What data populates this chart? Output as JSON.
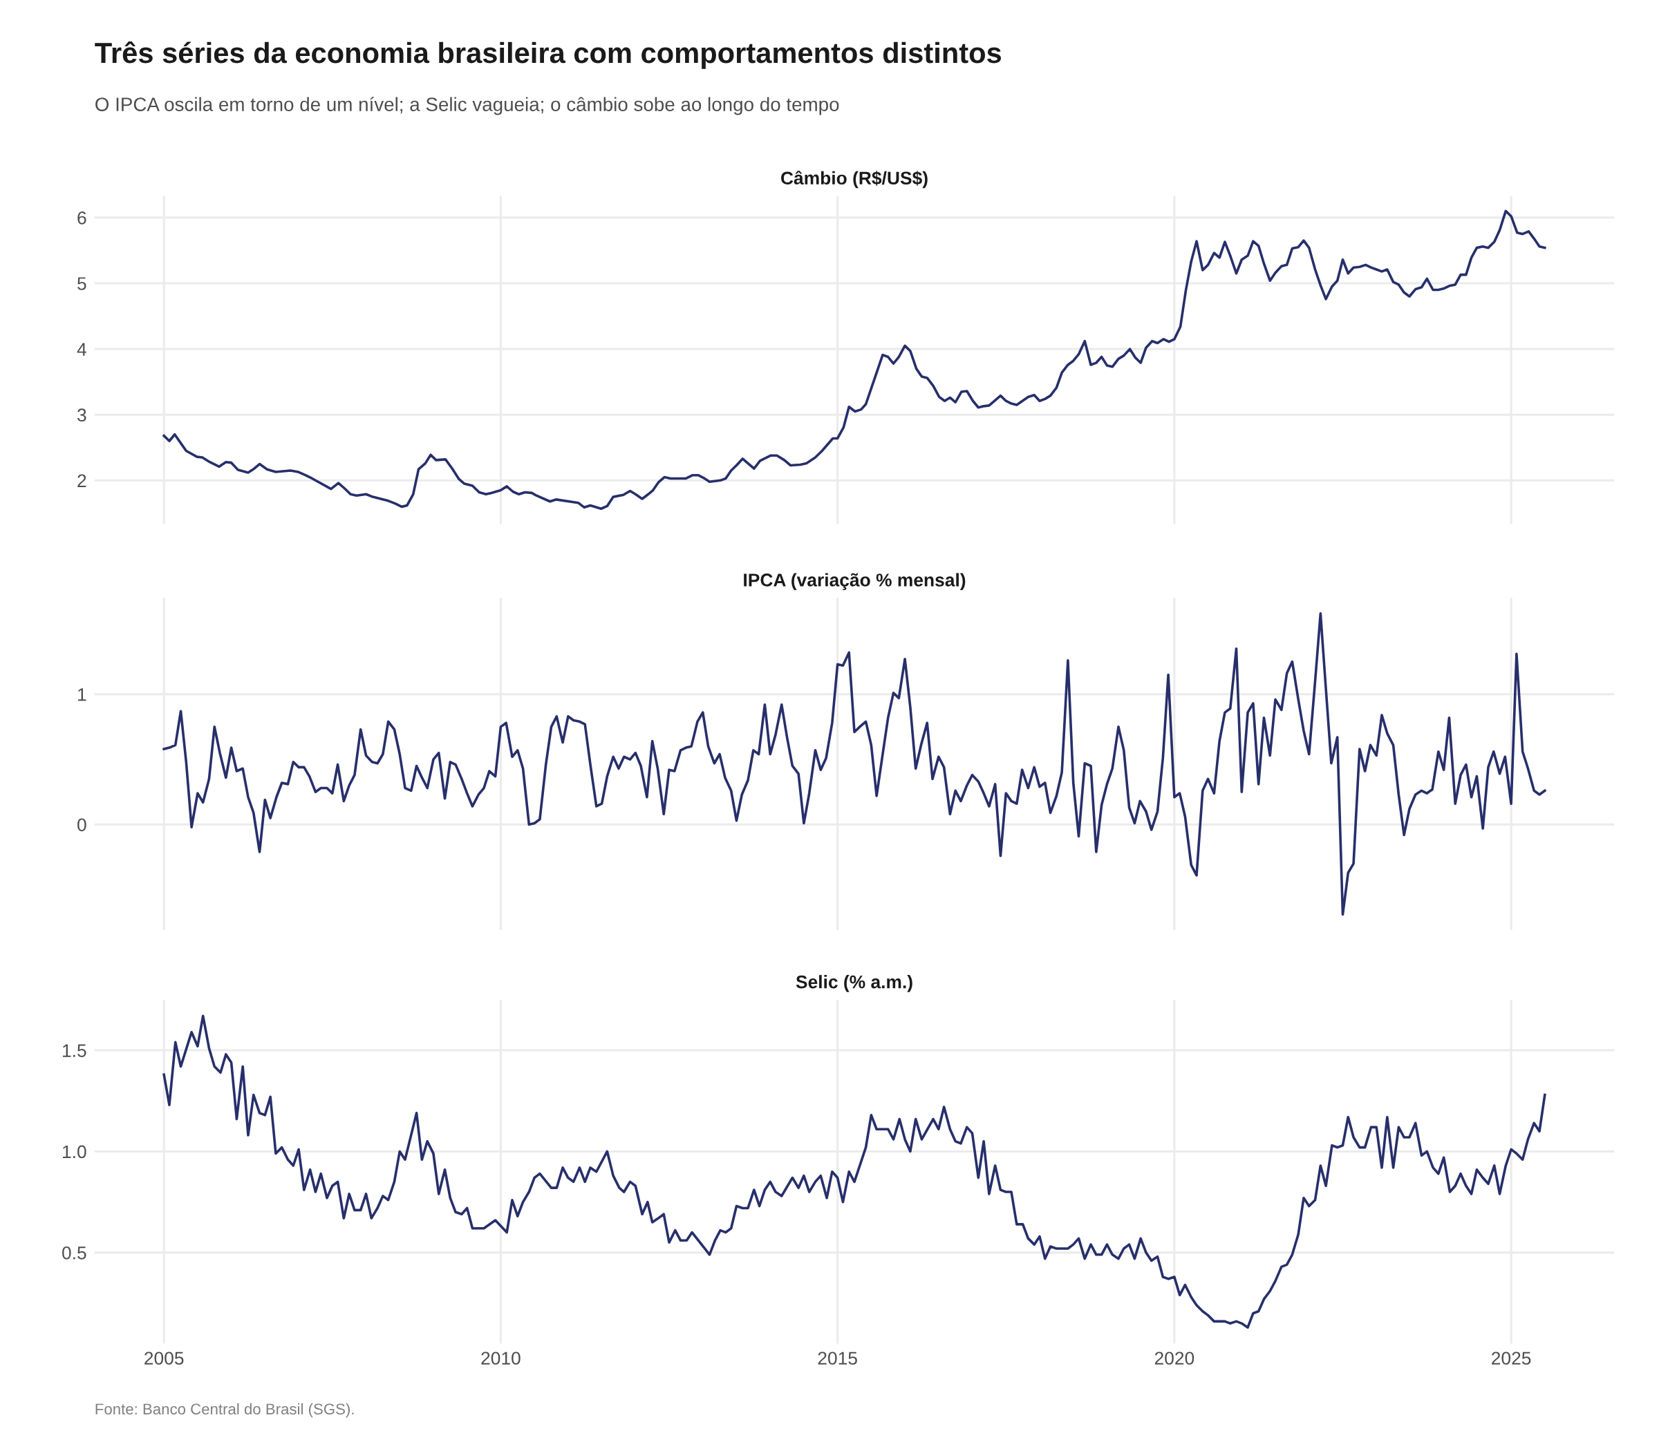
{
  "chart_data": [
    {
      "type": "line",
      "title": "Três séries da economia brasileira com comportamentos distintos",
      "subtitle": "O IPCA oscila em torno de um nível; a Selic vagueia; o câmbio sobe ao longo do tempo",
      "x": [
        2005.0,
        2005.08,
        2005.16,
        2005.33,
        2005.49,
        2005.57,
        2005.68,
        2005.82,
        2005.92,
        2006.0,
        2006.1,
        2006.25,
        2006.34,
        2006.42,
        2006.53,
        2006.66,
        2006.88,
        2006.99,
        2007.1,
        2007.2,
        2007.48,
        2007.59,
        2007.68,
        2007.77,
        2007.86,
        2008.0,
        2008.1,
        2008.33,
        2008.43,
        2008.53,
        2008.61,
        2008.7,
        2008.78,
        2008.88,
        2008.96,
        2009.04,
        2009.18,
        2009.28,
        2009.38,
        2009.46,
        2009.58,
        2009.68,
        2009.78,
        2009.86,
        2010.0,
        2010.09,
        2010.18,
        2010.27,
        2010.36,
        2010.46,
        2010.53,
        2010.73,
        2010.82,
        2011.15,
        2011.24,
        2011.33,
        2011.49,
        2011.58,
        2011.67,
        2011.82,
        2011.92,
        2012.0,
        2012.1,
        2012.19,
        2012.26,
        2012.34,
        2012.43,
        2012.52,
        2012.75,
        2012.85,
        2012.93,
        2013.01,
        2013.1,
        2013.26,
        2013.34,
        2013.42,
        2013.5,
        2013.59,
        2013.76,
        2013.85,
        2014.01,
        2014.1,
        2014.21,
        2014.3,
        2014.45,
        2014.54,
        2014.67,
        2014.77,
        2014.93,
        2015.0,
        2015.09,
        2015.17,
        2015.26,
        2015.35,
        2015.42,
        2015.51,
        2015.67,
        2015.75,
        2015.83,
        2015.91,
        2016.0,
        2016.08,
        2016.17,
        2016.25,
        2016.33,
        2016.42,
        2016.51,
        2016.59,
        2016.67,
        2016.75,
        2016.84,
        2016.92,
        2017.01,
        2017.09,
        2017.17,
        2017.25,
        2017.34,
        2017.42,
        2017.5,
        2017.58,
        2017.66,
        2017.83,
        2017.92,
        2018.0,
        2018.08,
        2018.16,
        2018.25,
        2018.33,
        2018.42,
        2018.5,
        2018.58,
        2018.67,
        2018.76,
        2018.84,
        2018.92,
        2019.0,
        2019.08,
        2019.17,
        2019.25,
        2019.34,
        2019.42,
        2019.5,
        2019.58,
        2019.67,
        2019.75,
        2019.84,
        2019.92,
        2020.0,
        2020.09,
        2020.17,
        2020.25,
        2020.33,
        2020.42,
        2020.5,
        2020.59,
        2020.67,
        2020.75,
        2020.83,
        2020.92,
        2021.0,
        2021.09,
        2021.17,
        2021.25,
        2021.33,
        2021.42,
        2021.5,
        2021.59,
        2021.67,
        2021.75,
        2021.84,
        2021.92,
        2022.0,
        2022.09,
        2022.17,
        2022.25,
        2022.34,
        2022.42,
        2022.5,
        2022.58,
        2022.66,
        2022.75,
        2022.84,
        2022.92,
        2023.0,
        2023.08,
        2023.16,
        2023.25,
        2023.33,
        2023.41,
        2023.49,
        2023.58,
        2023.67,
        2023.75,
        2023.84,
        2023.92,
        2024.0,
        2024.08,
        2024.17,
        2024.25,
        2024.33,
        2024.41,
        2024.49,
        2024.58,
        2024.66,
        2024.75,
        2024.83,
        2024.92,
        2025.0,
        2025.09,
        2025.17,
        2025.26,
        2025.34,
        2025.42,
        2025.5
      ],
      "series": [
        {
          "name": "Câmbio (R$/US$)",
          "color": "#272f6b",
          "values": [
            2.68,
            2.6,
            2.7,
            2.45,
            2.36,
            2.35,
            2.28,
            2.21,
            2.28,
            2.27,
            2.16,
            2.12,
            2.18,
            2.25,
            2.17,
            2.13,
            2.15,
            2.13,
            2.08,
            2.03,
            1.87,
            1.96,
            1.88,
            1.79,
            1.77,
            1.79,
            1.75,
            1.69,
            1.65,
            1.6,
            1.62,
            1.79,
            2.17,
            2.26,
            2.39,
            2.31,
            2.32,
            2.18,
            2.02,
            1.95,
            1.92,
            1.82,
            1.79,
            1.81,
            1.85,
            1.91,
            1.83,
            1.79,
            1.82,
            1.81,
            1.77,
            1.68,
            1.71,
            1.66,
            1.59,
            1.62,
            1.57,
            1.61,
            1.75,
            1.78,
            1.84,
            1.79,
            1.72,
            1.79,
            1.85,
            1.97,
            2.05,
            2.03,
            2.03,
            2.08,
            2.08,
            2.04,
            1.98,
            2.0,
            2.03,
            2.15,
            2.23,
            2.33,
            2.18,
            2.3,
            2.38,
            2.38,
            2.31,
            2.23,
            2.24,
            2.26,
            2.35,
            2.45,
            2.64,
            2.64,
            2.81,
            3.12,
            3.05,
            3.08,
            3.16,
            3.43,
            3.91,
            3.88,
            3.78,
            3.88,
            4.05,
            3.97,
            3.7,
            3.58,
            3.56,
            3.44,
            3.27,
            3.21,
            3.26,
            3.19,
            3.35,
            3.36,
            3.21,
            3.11,
            3.13,
            3.14,
            3.22,
            3.29,
            3.21,
            3.17,
            3.15,
            3.27,
            3.3,
            3.21,
            3.24,
            3.29,
            3.41,
            3.64,
            3.76,
            3.82,
            3.92,
            4.12,
            3.76,
            3.79,
            3.88,
            3.75,
            3.73,
            3.85,
            3.9,
            4.0,
            3.87,
            3.79,
            4.02,
            4.12,
            4.09,
            4.15,
            4.11,
            4.15,
            4.34,
            4.89,
            5.33,
            5.64,
            5.2,
            5.28,
            5.46,
            5.39,
            5.63,
            5.42,
            5.15,
            5.36,
            5.42,
            5.64,
            5.57,
            5.3,
            5.04,
            5.16,
            5.26,
            5.28,
            5.53,
            5.55,
            5.65,
            5.54,
            5.21,
            4.97,
            4.76,
            4.95,
            5.04,
            5.36,
            5.15,
            5.24,
            5.25,
            5.28,
            5.24,
            5.21,
            5.18,
            5.21,
            5.02,
            4.98,
            4.86,
            4.8,
            4.91,
            4.94,
            5.07,
            4.9,
            4.9,
            4.92,
            4.96,
            4.98,
            5.13,
            5.13,
            5.39,
            5.54,
            5.56,
            5.54,
            5.63,
            5.81,
            6.1,
            6.02,
            5.77,
            5.75,
            5.79,
            5.68,
            5.56,
            5.54
          ]
        }
      ],
      "xlim": [
        2003.97,
        2026.53
      ],
      "xticks": [
        2005,
        2010,
        2015,
        2020,
        2025
      ],
      "ylim": [
        1.34,
        6.33
      ],
      "yticks": [
        2,
        3,
        4,
        5,
        6
      ],
      "grid": true,
      "tick_labels": "y"
    },
    {
      "type": "line",
      "x": [
        2005.0,
        2005.08,
        2005.17,
        2005.25,
        2005.33,
        2005.41,
        2005.5,
        2005.58,
        2005.67,
        2005.75,
        2005.83,
        2005.92,
        2006.0,
        2006.08,
        2006.17,
        2006.25,
        2006.33,
        2006.42,
        2006.5,
        2006.58,
        2006.67,
        2006.75,
        2006.84,
        2006.92,
        2007.0,
        2007.08,
        2007.16,
        2007.25,
        2007.33,
        2007.42,
        2007.5,
        2007.58,
        2007.67,
        2007.75,
        2007.83,
        2007.92,
        2008.0,
        2008.09,
        2008.17,
        2008.25,
        2008.33,
        2008.42,
        2008.5,
        2008.58,
        2008.67,
        2008.75,
        2008.83,
        2008.91,
        2009.0,
        2009.08,
        2009.17,
        2009.25,
        2009.33,
        2009.42,
        2009.5,
        2009.58,
        2009.67,
        2009.75,
        2009.83,
        2009.92,
        2010.0,
        2010.08,
        2010.17,
        2010.25,
        2010.33,
        2010.42,
        2010.5,
        2010.58,
        2010.67,
        2010.75,
        2010.83,
        2010.92,
        2011.0,
        2011.08,
        2011.17,
        2011.25,
        2011.33,
        2011.42,
        2011.5,
        2011.58,
        2011.67,
        2011.75,
        2011.83,
        2011.92,
        2012.0,
        2012.08,
        2012.17,
        2012.25,
        2012.33,
        2012.42,
        2012.5,
        2012.58,
        2012.67,
        2012.75,
        2012.83,
        2012.92,
        2013.0,
        2013.08,
        2013.17,
        2013.25,
        2013.33,
        2013.42,
        2013.5,
        2013.58,
        2013.67,
        2013.75,
        2013.83,
        2013.92,
        2014.0,
        2014.08,
        2014.17,
        2014.25,
        2014.33,
        2014.42,
        2014.5,
        2014.58,
        2014.67,
        2014.75,
        2014.83,
        2014.92,
        2015.0,
        2015.08,
        2015.17,
        2015.25,
        2015.33,
        2015.42,
        2015.5,
        2015.58,
        2015.67,
        2015.75,
        2015.83,
        2015.91,
        2016.0,
        2016.08,
        2016.16,
        2016.24,
        2016.33,
        2016.41,
        2016.5,
        2016.58,
        2016.67,
        2016.75,
        2016.83,
        2016.92,
        2017.0,
        2017.09,
        2017.17,
        2017.25,
        2017.34,
        2017.42,
        2017.5,
        2017.58,
        2017.66,
        2017.74,
        2017.83,
        2017.92,
        2018.0,
        2018.08,
        2018.16,
        2018.25,
        2018.33,
        2018.42,
        2018.5,
        2018.58,
        2018.67,
        2018.76,
        2018.84,
        2018.92,
        2019.0,
        2019.08,
        2019.17,
        2019.25,
        2019.33,
        2019.41,
        2019.49,
        2019.58,
        2019.66,
        2019.75,
        2019.83,
        2019.91,
        2020.0,
        2020.08,
        2020.16,
        2020.25,
        2020.33,
        2020.42,
        2020.5,
        2020.59,
        2020.67,
        2020.75,
        2020.83,
        2020.92,
        2021.0,
        2021.09,
        2021.17,
        2021.25,
        2021.33,
        2021.42,
        2021.5,
        2021.59,
        2021.67,
        2021.75,
        2021.84,
        2021.92,
        2022.0,
        2022.09,
        2022.17,
        2022.25,
        2022.33,
        2022.42,
        2022.5,
        2022.58,
        2022.66,
        2022.75,
        2022.83,
        2022.91,
        2023.0,
        2023.08,
        2023.16,
        2023.25,
        2023.33,
        2023.41,
        2023.49,
        2023.58,
        2023.67,
        2023.75,
        2023.83,
        2023.92,
        2024.0,
        2024.08,
        2024.17,
        2024.25,
        2024.33,
        2024.41,
        2024.49,
        2024.58,
        2024.66,
        2024.74,
        2024.83,
        2024.91,
        2025.0,
        2025.08,
        2025.17,
        2025.25,
        2025.34,
        2025.42,
        2025.5
      ],
      "series": [
        {
          "name": "IPCA (variação % mensal)",
          "color": "#272f6b",
          "values": [
            0.58,
            0.59,
            0.61,
            0.87,
            0.48,
            -0.02,
            0.24,
            0.17,
            0.35,
            0.75,
            0.55,
            0.36,
            0.59,
            0.41,
            0.43,
            0.21,
            0.09,
            -0.21,
            0.19,
            0.05,
            0.21,
            0.32,
            0.31,
            0.48,
            0.44,
            0.44,
            0.37,
            0.25,
            0.28,
            0.28,
            0.24,
            0.46,
            0.18,
            0.3,
            0.38,
            0.73,
            0.53,
            0.48,
            0.47,
            0.54,
            0.79,
            0.73,
            0.54,
            0.28,
            0.26,
            0.45,
            0.36,
            0.28,
            0.5,
            0.55,
            0.2,
            0.48,
            0.46,
            0.35,
            0.24,
            0.14,
            0.23,
            0.28,
            0.41,
            0.37,
            0.75,
            0.78,
            0.52,
            0.57,
            0.43,
            0.0,
            0.01,
            0.04,
            0.46,
            0.75,
            0.83,
            0.63,
            0.83,
            0.8,
            0.79,
            0.77,
            0.46,
            0.14,
            0.16,
            0.37,
            0.52,
            0.43,
            0.52,
            0.5,
            0.55,
            0.45,
            0.21,
            0.64,
            0.43,
            0.08,
            0.42,
            0.41,
            0.57,
            0.59,
            0.6,
            0.79,
            0.86,
            0.6,
            0.47,
            0.54,
            0.36,
            0.26,
            0.03,
            0.23,
            0.34,
            0.57,
            0.54,
            0.92,
            0.54,
            0.69,
            0.92,
            0.67,
            0.45,
            0.39,
            0.01,
            0.24,
            0.57,
            0.42,
            0.51,
            0.78,
            1.23,
            1.22,
            1.32,
            0.71,
            0.75,
            0.79,
            0.61,
            0.22,
            0.54,
            0.82,
            1.01,
            0.97,
            1.27,
            0.9,
            0.43,
            0.61,
            0.78,
            0.35,
            0.52,
            0.44,
            0.08,
            0.26,
            0.18,
            0.3,
            0.38,
            0.33,
            0.24,
            0.14,
            0.31,
            -0.24,
            0.24,
            0.18,
            0.16,
            0.42,
            0.28,
            0.44,
            0.29,
            0.32,
            0.09,
            0.22,
            0.4,
            1.26,
            0.32,
            -0.09,
            0.47,
            0.45,
            -0.21,
            0.15,
            0.31,
            0.43,
            0.75,
            0.57,
            0.13,
            0.01,
            0.18,
            0.1,
            -0.04,
            0.1,
            0.51,
            1.15,
            0.21,
            0.24,
            0.06,
            -0.31,
            -0.39,
            0.26,
            0.35,
            0.24,
            0.64,
            0.86,
            0.89,
            1.35,
            0.25,
            0.86,
            0.93,
            0.31,
            0.82,
            0.53,
            0.96,
            0.88,
            1.16,
            1.25,
            0.96,
            0.72,
            0.54,
            1.1,
            1.62,
            1.04,
            0.47,
            0.67,
            -0.69,
            -0.37,
            -0.3,
            0.58,
            0.41,
            0.61,
            0.53,
            0.84,
            0.7,
            0.61,
            0.23,
            -0.08,
            0.12,
            0.23,
            0.26,
            0.24,
            0.27,
            0.56,
            0.42,
            0.82,
            0.16,
            0.38,
            0.46,
            0.21,
            0.37,
            -0.03,
            0.44,
            0.56,
            0.39,
            0.52,
            0.16,
            1.31,
            0.56,
            0.43,
            0.26,
            0.23,
            0.26
          ]
        }
      ],
      "xlim": [
        2003.97,
        2026.53
      ],
      "xticks": [
        2005,
        2010,
        2015,
        2020,
        2025
      ],
      "ylim": [
        -0.81,
        1.74
      ],
      "yticks": [
        0,
        1
      ],
      "grid": true,
      "tick_labels": "y"
    },
    {
      "type": "line",
      "annotations": [
        "Fonte: Banco Central do Brasil (SGS)."
      ],
      "x": [
        2005.0,
        2005.08,
        2005.17,
        2005.25,
        2005.41,
        2005.5,
        2005.58,
        2005.67,
        2005.75,
        2005.84,
        2005.92,
        2006.0,
        2006.08,
        2006.17,
        2006.25,
        2006.33,
        2006.42,
        2006.5,
        2006.58,
        2006.66,
        2006.75,
        2006.84,
        2006.92,
        2007.0,
        2007.08,
        2007.17,
        2007.25,
        2007.33,
        2007.42,
        2007.5,
        2007.58,
        2007.67,
        2007.75,
        2007.83,
        2007.92,
        2008.0,
        2008.08,
        2008.17,
        2008.25,
        2008.33,
        2008.42,
        2008.5,
        2008.58,
        2008.75,
        2008.83,
        2008.91,
        2009.0,
        2009.08,
        2009.17,
        2009.25,
        2009.33,
        2009.42,
        2009.5,
        2009.58,
        2009.75,
        2009.92,
        2010.09,
        2010.17,
        2010.25,
        2010.33,
        2010.42,
        2010.5,
        2010.58,
        2010.75,
        2010.83,
        2010.92,
        2011.0,
        2011.08,
        2011.17,
        2011.25,
        2011.33,
        2011.42,
        2011.58,
        2011.67,
        2011.76,
        2011.83,
        2011.92,
        2012.0,
        2012.1,
        2012.18,
        2012.25,
        2012.34,
        2012.42,
        2012.5,
        2012.59,
        2012.67,
        2012.76,
        2012.84,
        2013.1,
        2013.18,
        2013.26,
        2013.34,
        2013.42,
        2013.5,
        2013.59,
        2013.67,
        2013.76,
        2013.84,
        2013.92,
        2014.0,
        2014.08,
        2014.17,
        2014.33,
        2014.42,
        2014.5,
        2014.58,
        2014.67,
        2014.75,
        2014.84,
        2014.92,
        2015.0,
        2015.08,
        2015.17,
        2015.25,
        2015.33,
        2015.42,
        2015.5,
        2015.58,
        2015.75,
        2015.83,
        2015.92,
        2016.0,
        2016.08,
        2016.16,
        2016.25,
        2016.42,
        2016.5,
        2016.58,
        2016.67,
        2016.75,
        2016.83,
        2016.92,
        2017.0,
        2017.09,
        2017.17,
        2017.25,
        2017.34,
        2017.42,
        2017.5,
        2017.58,
        2017.66,
        2017.75,
        2017.83,
        2017.92,
        2018.0,
        2018.08,
        2018.16,
        2018.25,
        2018.42,
        2018.5,
        2018.58,
        2018.67,
        2018.76,
        2018.84,
        2018.92,
        2019.0,
        2019.08,
        2019.17,
        2019.25,
        2019.33,
        2019.41,
        2019.5,
        2019.58,
        2019.66,
        2019.75,
        2019.83,
        2019.91,
        2020.0,
        2020.08,
        2020.16,
        2020.25,
        2020.33,
        2020.42,
        2020.5,
        2020.59,
        2020.75,
        2020.83,
        2020.92,
        2021.0,
        2021.09,
        2021.17,
        2021.25,
        2021.33,
        2021.42,
        2021.5,
        2021.59,
        2021.67,
        2021.75,
        2021.84,
        2021.92,
        2022.0,
        2022.09,
        2022.17,
        2022.25,
        2022.34,
        2022.42,
        2022.5,
        2022.58,
        2022.66,
        2022.75,
        2022.83,
        2022.92,
        2023.0,
        2023.08,
        2023.16,
        2023.25,
        2023.33,
        2023.41,
        2023.49,
        2023.58,
        2023.67,
        2023.75,
        2023.84,
        2023.92,
        2024.0,
        2024.09,
        2024.17,
        2024.25,
        2024.33,
        2024.41,
        2024.49,
        2024.58,
        2024.66,
        2024.75,
        2024.83,
        2024.92,
        2025.0,
        2025.08,
        2025.17,
        2025.25,
        2025.34,
        2025.42,
        2025.5
      ],
      "series": [
        {
          "name": "Selic (% a.m.)",
          "color": "#272f6b",
          "values": [
            1.38,
            1.23,
            1.54,
            1.42,
            1.59,
            1.52,
            1.67,
            1.51,
            1.42,
            1.39,
            1.48,
            1.44,
            1.16,
            1.42,
            1.08,
            1.28,
            1.19,
            1.18,
            1.27,
            0.99,
            1.02,
            0.96,
            0.93,
            1.01,
            0.81,
            0.91,
            0.8,
            0.89,
            0.77,
            0.83,
            0.85,
            0.67,
            0.79,
            0.71,
            0.71,
            0.79,
            0.67,
            0.72,
            0.78,
            0.76,
            0.85,
            1.0,
            0.96,
            1.19,
            0.96,
            1.05,
            0.99,
            0.79,
            0.91,
            0.77,
            0.7,
            0.69,
            0.72,
            0.62,
            0.62,
            0.66,
            0.6,
            0.76,
            0.68,
            0.75,
            0.8,
            0.87,
            0.89,
            0.82,
            0.82,
            0.92,
            0.87,
            0.85,
            0.92,
            0.85,
            0.92,
            0.9,
            1.0,
            0.88,
            0.82,
            0.8,
            0.85,
            0.83,
            0.69,
            0.75,
            0.65,
            0.67,
            0.69,
            0.55,
            0.61,
            0.56,
            0.56,
            0.6,
            0.49,
            0.56,
            0.61,
            0.6,
            0.62,
            0.73,
            0.72,
            0.72,
            0.81,
            0.73,
            0.81,
            0.85,
            0.8,
            0.78,
            0.87,
            0.82,
            0.88,
            0.8,
            0.85,
            0.88,
            0.77,
            0.9,
            0.87,
            0.75,
            0.9,
            0.85,
            0.93,
            1.02,
            1.18,
            1.11,
            1.11,
            1.06,
            1.16,
            1.06,
            1.0,
            1.16,
            1.06,
            1.16,
            1.11,
            1.22,
            1.11,
            1.05,
            1.04,
            1.12,
            1.09,
            0.87,
            1.05,
            0.79,
            0.93,
            0.81,
            0.8,
            0.8,
            0.64,
            0.64,
            0.57,
            0.54,
            0.58,
            0.47,
            0.53,
            0.52,
            0.52,
            0.54,
            0.57,
            0.47,
            0.54,
            0.49,
            0.49,
            0.54,
            0.49,
            0.47,
            0.52,
            0.54,
            0.47,
            0.57,
            0.5,
            0.46,
            0.48,
            0.38,
            0.37,
            0.38,
            0.29,
            0.34,
            0.28,
            0.24,
            0.21,
            0.19,
            0.16,
            0.16,
            0.15,
            0.16,
            0.15,
            0.13,
            0.2,
            0.21,
            0.27,
            0.31,
            0.36,
            0.43,
            0.44,
            0.49,
            0.59,
            0.77,
            0.73,
            0.76,
            0.93,
            0.83,
            1.03,
            1.02,
            1.03,
            1.17,
            1.07,
            1.02,
            1.02,
            1.12,
            1.12,
            0.92,
            1.17,
            0.92,
            1.12,
            1.07,
            1.07,
            1.14,
            0.98,
            1.0,
            0.92,
            0.89,
            0.97,
            0.8,
            0.83,
            0.89,
            0.83,
            0.79,
            0.91,
            0.87,
            0.84,
            0.93,
            0.79,
            0.93,
            1.01,
            0.99,
            0.96,
            1.06,
            1.14,
            1.1,
            1.28
          ]
        }
      ],
      "xlim": [
        2003.97,
        2026.53
      ],
      "xticks": [
        2005,
        2010,
        2015,
        2020,
        2025
      ],
      "ylim": [
        0.05,
        1.75
      ],
      "yticks": [
        0.5,
        {
          "value": 1,
          "label": "1.0"
        },
        1.5
      ],
      "grid": true
    }
  ]
}
